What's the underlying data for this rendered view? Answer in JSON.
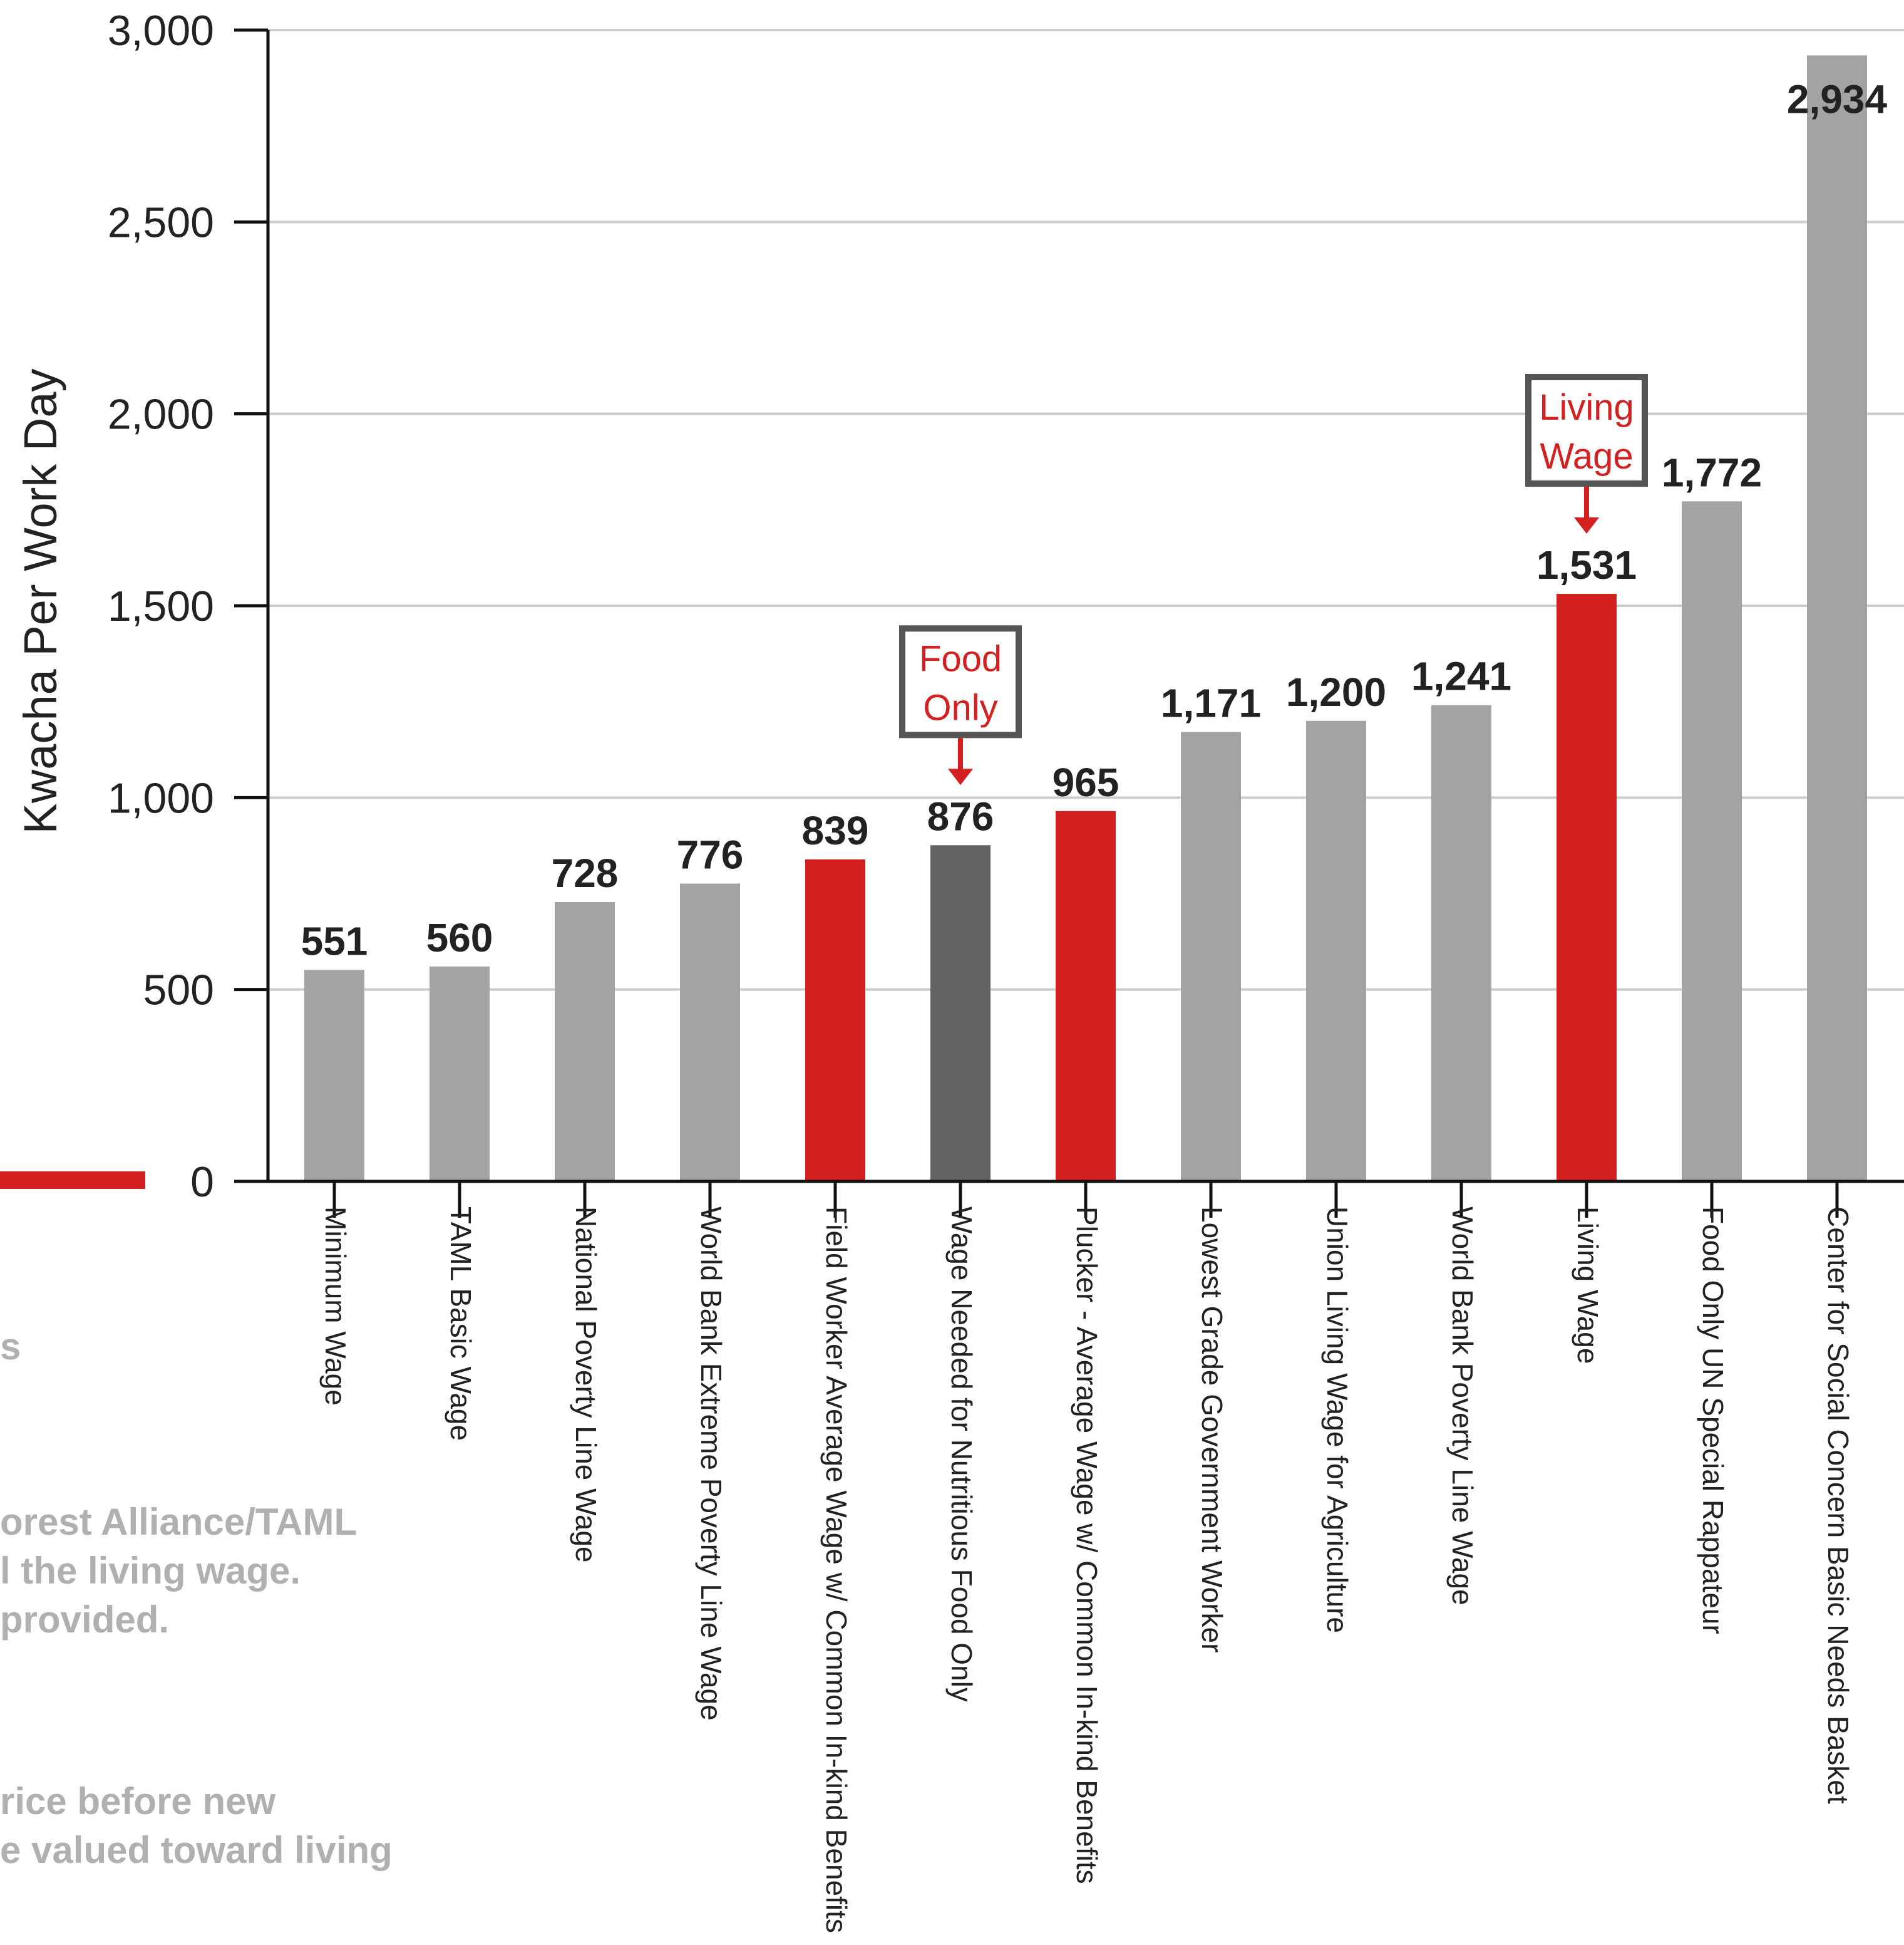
{
  "chart_data": {
    "type": "bar",
    "ylabel": "Kwacha Per Work Day",
    "ylim": [
      0,
      3000
    ],
    "yticks": [
      0,
      500,
      1000,
      1500,
      2000,
      2500,
      3000
    ],
    "ytick_labels": [
      "0",
      "500",
      "1,000",
      "1,500",
      "2,000",
      "2,500",
      "3,000"
    ],
    "grid": true,
    "categories": [
      "Minimum Wage",
      "TAML Basic Wage",
      "National Poverty Line Wage",
      "World Bank Extreme Poverty Line Wage",
      "Field Worker Average Wage w/ Common In-kind Benefits",
      "Wage Needed for Nutritious Food Only",
      "Plucker - Average Wage w/ Common In-kind Benefits",
      "Lowest Grade Government Worker",
      "Union Living Wage for Agriculture",
      "World Bank Poverty Line Wage",
      "Living Wage",
      "Food Only UN Special Rappateur",
      "Center for Social Concern Basic Needs Basket"
    ],
    "values": [
      551,
      560,
      728,
      776,
      839,
      876,
      965,
      1171,
      1200,
      1241,
      1531,
      1772,
      2934
    ],
    "value_labels": [
      "551",
      "560",
      "728",
      "776",
      "839",
      "876",
      "965",
      "1,171",
      "1,200",
      "1,241",
      "1,531",
      "1,772",
      "2,934"
    ],
    "bar_colors": [
      "#a3a3a3",
      "#a3a3a3",
      "#a3a3a3",
      "#a3a3a3",
      "#d42020",
      "#636363",
      "#d42020",
      "#a3a3a3",
      "#a3a3a3",
      "#a3a3a3",
      "#d42020",
      "#a3a3a3",
      "#a3a3a3"
    ],
    "annotations": [
      {
        "category_index": 5,
        "lines": [
          "Food",
          "Only"
        ]
      },
      {
        "category_index": 10,
        "lines": [
          "Living",
          "Wage"
        ]
      }
    ]
  },
  "side_text": {
    "line1": "s",
    "line2": "orest Alliance/TAML",
    "line3": "l the living wage.",
    "line4": "provided.",
    "line5": "rice before new",
    "line6": "e valued toward living"
  },
  "colors": {
    "grey_bar": "#a3a3a3",
    "dark_bar": "#636363",
    "red": "#d42020",
    "grid": "#cccccc",
    "axis": "#111111"
  }
}
